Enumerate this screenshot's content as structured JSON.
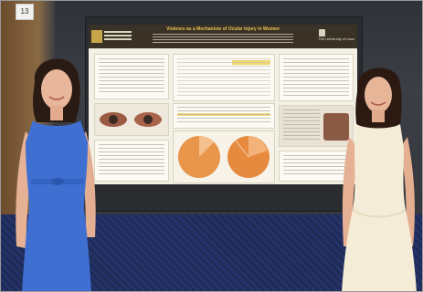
{
  "scene": {
    "sign_number": "13",
    "poster": {
      "title": "Violence as a Mechanism of Ocular Injury in Women",
      "right_logo_text": "The University of Iowa"
    }
  },
  "colors": {
    "left_dress": "#3f6fd1",
    "right_dress": "#f4ecd6",
    "carpet": "#24336a",
    "poster_header": "#3a3226",
    "title_text": "#e9c257",
    "pie_fill": "#e9954a"
  }
}
